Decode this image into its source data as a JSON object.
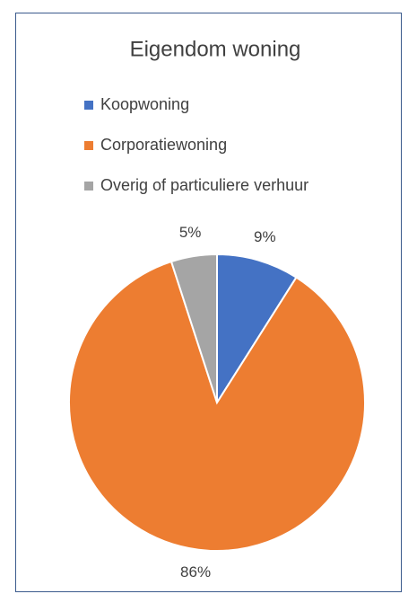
{
  "chart_data": {
    "type": "pie",
    "title": "Eigendom woning",
    "categories": [
      "Koopwoning",
      "Corporatiewoning",
      "Overig of particuliere verhuur"
    ],
    "values": [
      9,
      86,
      5
    ],
    "value_labels": [
      "9%",
      "86%",
      "5%"
    ],
    "colors": [
      "#4472c4",
      "#ed7d31",
      "#a5a5a5"
    ],
    "legend": "top"
  }
}
